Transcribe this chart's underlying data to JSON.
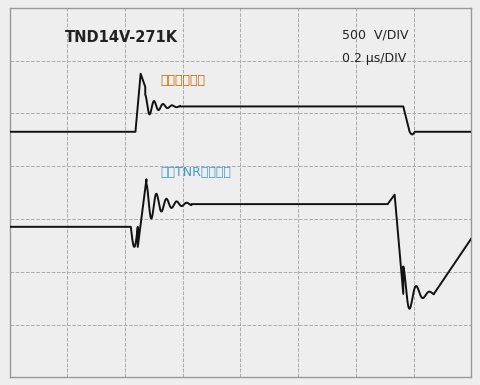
{
  "title_left": "TND14V-271K",
  "title_right_line1": "500  V/DIV",
  "title_right_line2": "0.2 μs/DIV",
  "label_wave1": "原始浪涌波形",
  "label_wave2": "连接TNR时的波形",
  "grid_color": "#aaaaaa",
  "bg_color": "#eeeeee",
  "wave_color": "#111111",
  "label_color_1": "#cc6600",
  "label_color_2": "#4499cc",
  "n_cols": 8,
  "n_rows": 7,
  "xlim": [
    0,
    8
  ],
  "ylim": [
    0,
    7
  ],
  "figw": 4.81,
  "figh": 3.85,
  "dpi": 100
}
